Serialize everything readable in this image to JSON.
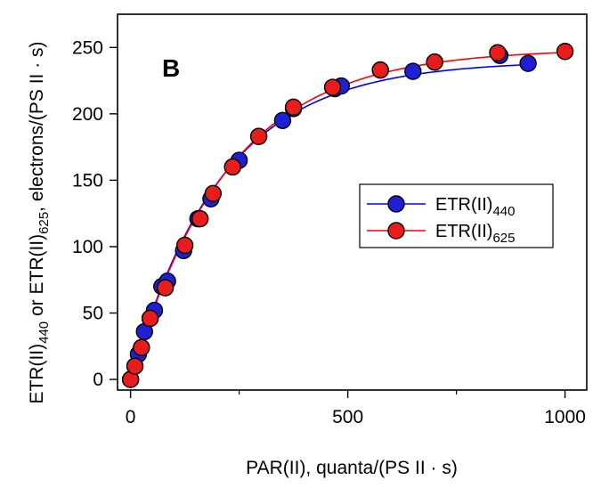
{
  "chart_data": {
    "type": "scatter",
    "panel_label": "B",
    "xlabel": "PAR(II), quanta/(PS II · s)",
    "ylabel_parts": [
      "ETR(II)",
      "440",
      " or ETR(II)",
      "625",
      ", electrons/(PS II · s)"
    ],
    "xlim": [
      -30,
      1050
    ],
    "ylim": [
      -8,
      275
    ],
    "xticks": [
      0,
      500,
      1000
    ],
    "xticks_minor": [
      250,
      750
    ],
    "yticks": [
      0,
      50,
      100,
      150,
      200,
      250
    ],
    "xtick_labels": [
      "0",
      "500",
      "1000"
    ],
    "ytick_labels": [
      "0",
      "50",
      "100",
      "150",
      "200",
      "250"
    ],
    "legend_position": "center-right",
    "series": [
      {
        "name": "ETR(II)440",
        "label_base": "ETR(II)",
        "label_sub": "440",
        "color": "#0000ff",
        "marker_fill": "#1f1fd6",
        "x": [
          0,
          10,
          18,
          32,
          45,
          55,
          72,
          85,
          122,
          155,
          185,
          235,
          250,
          295,
          350,
          375,
          470,
          485,
          575,
          650,
          700,
          850,
          915
        ],
        "y": [
          0,
          10,
          19,
          36,
          46,
          52,
          70,
          74,
          97,
          121,
          136,
          160,
          165,
          183,
          195,
          204,
          219,
          221,
          233,
          232,
          239,
          244,
          238
        ],
        "fit": {
          "Pmax": 240,
          "k": 0.0048
        }
      },
      {
        "name": "ETR(II)625",
        "label_base": "ETR(II)",
        "label_sub": "625",
        "color": "#ff0000",
        "marker_fill": "#e81c1c",
        "x": [
          0,
          10,
          25,
          45,
          80,
          125,
          160,
          190,
          235,
          295,
          375,
          465,
          575,
          700,
          845,
          1000
        ],
        "y": [
          0,
          10,
          24,
          46,
          69,
          101,
          121,
          140,
          160,
          183,
          205,
          220,
          233,
          239,
          246,
          247
        ],
        "fit": {
          "Pmax": 249,
          "k": 0.0045
        }
      }
    ]
  }
}
